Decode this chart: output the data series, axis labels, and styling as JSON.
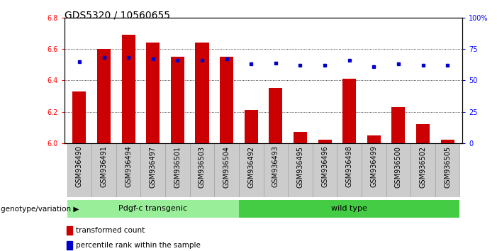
{
  "title": "GDS5320 / 10560655",
  "categories": [
    "GSM936490",
    "GSM936491",
    "GSM936494",
    "GSM936497",
    "GSM936501",
    "GSM936503",
    "GSM936504",
    "GSM936492",
    "GSM936493",
    "GSM936495",
    "GSM936496",
    "GSM936498",
    "GSM936499",
    "GSM936500",
    "GSM936502",
    "GSM936505"
  ],
  "red_values": [
    6.33,
    6.6,
    6.69,
    6.64,
    6.55,
    6.64,
    6.55,
    6.21,
    6.35,
    6.07,
    6.02,
    6.41,
    6.05,
    6.23,
    6.12,
    6.02
  ],
  "blue_values": [
    65,
    68,
    68,
    67,
    66,
    66,
    67,
    63,
    64,
    62,
    62,
    66,
    61,
    63,
    62,
    62
  ],
  "ylim_left": [
    6.0,
    6.8
  ],
  "ylim_right": [
    0,
    100
  ],
  "yticks_left": [
    6.0,
    6.2,
    6.4,
    6.6,
    6.8
  ],
  "yticks_right": [
    0,
    25,
    50,
    75,
    100
  ],
  "ytick_labels_right": [
    "0",
    "25",
    "50",
    "75",
    "100%"
  ],
  "group1_label": "Pdgf-c transgenic",
  "group2_label": "wild type",
  "group1_count": 7,
  "group2_count": 9,
  "genotype_label": "genotype/variation",
  "legend1": "transformed count",
  "legend2": "percentile rank within the sample",
  "bar_color": "#cc0000",
  "dot_color": "#0000cc",
  "group1_color": "#99ee99",
  "group2_color": "#44cc44",
  "bg_color": "#ffffff",
  "gray_bg": "#cccccc",
  "title_fontsize": 10,
  "tick_label_fontsize": 7,
  "axis_label_fontsize": 8
}
